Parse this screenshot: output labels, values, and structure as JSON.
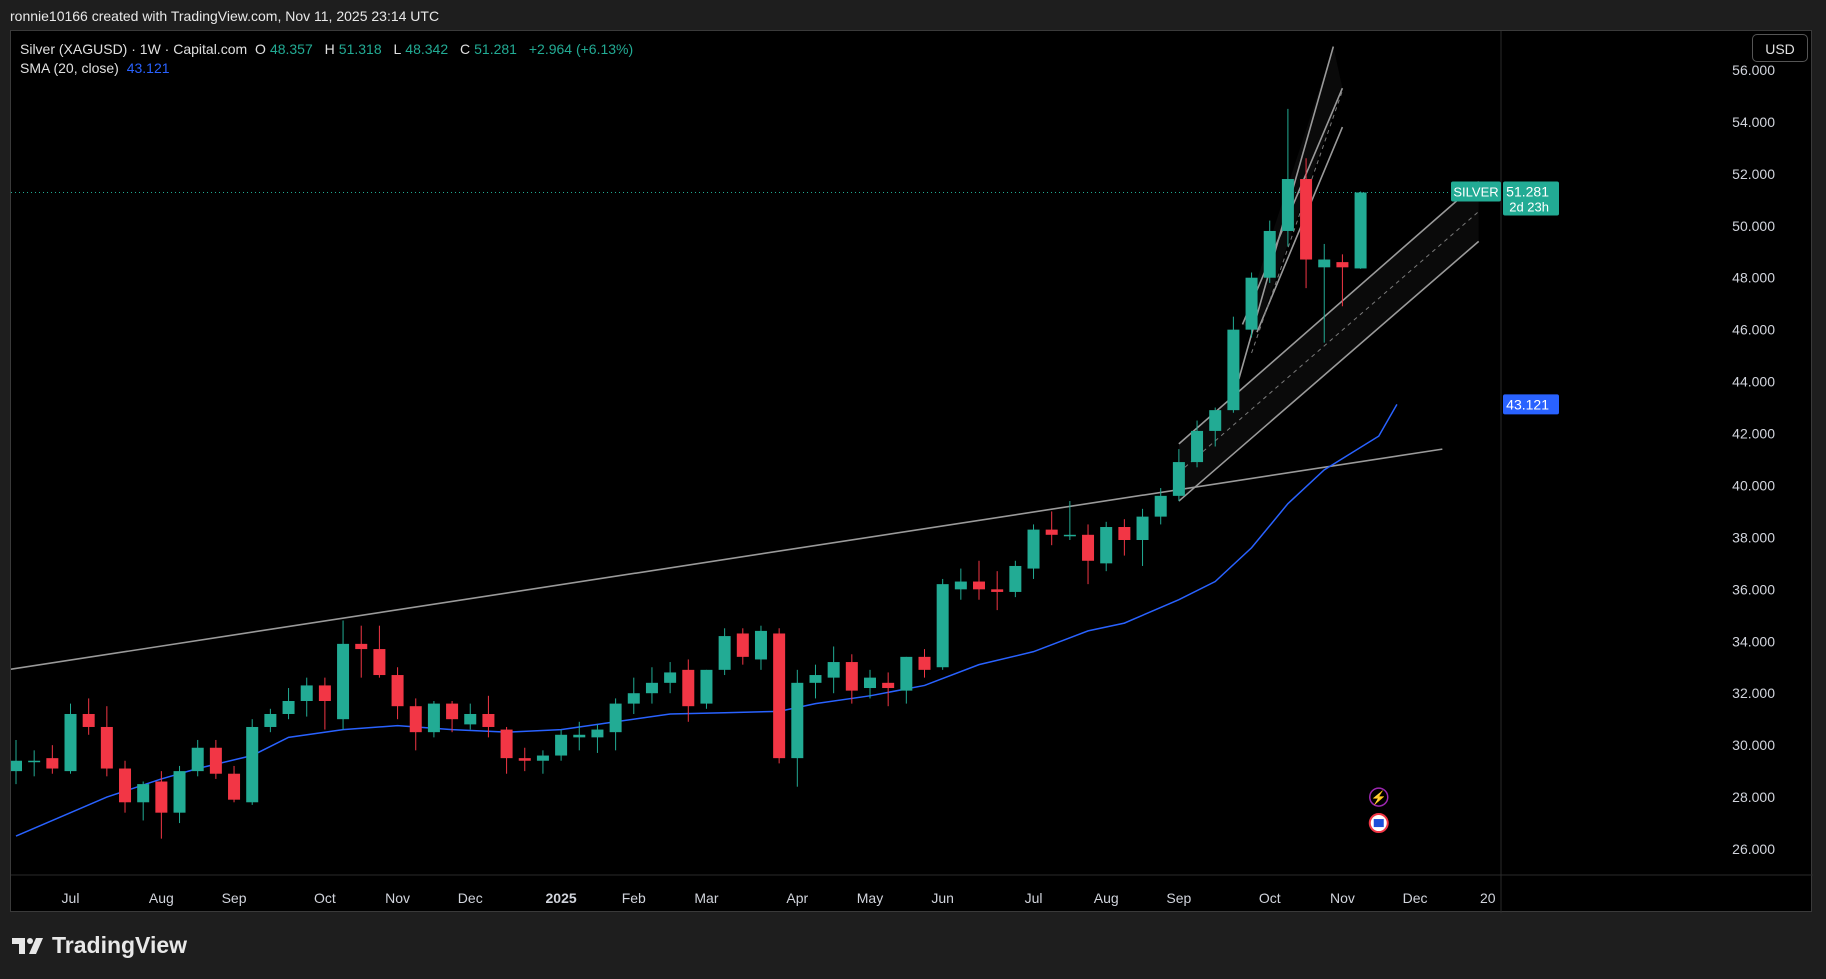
{
  "header": {
    "attribution": "ronnie10166 created with TradingView.com, Nov 11, 2025 23:14 UTC"
  },
  "legend": {
    "symbol": "Silver (XAGUSD) · 1W · Capital.com",
    "o_label": "O",
    "o_value": "48.357",
    "h_label": "H",
    "h_value": "51.318",
    "l_label": "L",
    "l_value": "48.342",
    "c_label": "C",
    "c_value": "51.281",
    "change": "+2.964 (+6.13%)",
    "sma_label": "SMA (20, close)",
    "sma_value": "43.121"
  },
  "currency_button": "USD",
  "price_tag": {
    "name": "SILVER",
    "price": "51.281",
    "countdown": "2d 23h"
  },
  "sma_tag": "43.121",
  "brand": "TradingView",
  "colors": {
    "up": "#22ab94",
    "down": "#f23645",
    "sma": "#2962ff",
    "line": "#9a9a9a",
    "text": "#d1d4dc"
  },
  "chart_data": {
    "type": "candlestick",
    "title": "Silver (XAGUSD) · 1W · Capital.com",
    "ylim": [
      25,
      57.5
    ],
    "y_ticks": [
      "26.000",
      "28.000",
      "30.000",
      "32.000",
      "34.000",
      "36.000",
      "38.000",
      "40.000",
      "42.000",
      "44.000",
      "46.000",
      "48.000",
      "50.000",
      "52.000",
      "54.000",
      "56.000"
    ],
    "x_ticks": [
      {
        "label": "Jul",
        "week": 3
      },
      {
        "label": "Aug",
        "week": 8
      },
      {
        "label": "Sep",
        "week": 12
      },
      {
        "label": "Oct",
        "week": 17
      },
      {
        "label": "Nov",
        "week": 21
      },
      {
        "label": "Dec",
        "week": 25
      },
      {
        "label": "2025",
        "week": 30
      },
      {
        "label": "Feb",
        "week": 34
      },
      {
        "label": "Mar",
        "week": 38
      },
      {
        "label": "Apr",
        "week": 43
      },
      {
        "label": "May",
        "week": 47
      },
      {
        "label": "Jun",
        "week": 51
      },
      {
        "label": "Jul",
        "week": 56
      },
      {
        "label": "Aug",
        "week": 60
      },
      {
        "label": "Sep",
        "week": 64
      },
      {
        "label": "Oct",
        "week": 69
      },
      {
        "label": "Nov",
        "week": 73
      },
      {
        "label": "Dec",
        "week": 77
      },
      {
        "label": "20",
        "week": 81
      }
    ],
    "ohlc": [
      [
        29.0,
        30.2,
        28.5,
        29.4
      ],
      [
        29.4,
        29.8,
        28.8,
        29.4
      ],
      [
        29.5,
        30.0,
        28.9,
        29.1
      ],
      [
        29.0,
        31.6,
        28.9,
        31.2
      ],
      [
        31.2,
        31.8,
        30.4,
        30.7
      ],
      [
        30.7,
        31.5,
        28.8,
        29.1
      ],
      [
        29.1,
        29.4,
        27.4,
        27.8
      ],
      [
        27.8,
        28.6,
        27.1,
        28.5
      ],
      [
        28.6,
        29.0,
        26.4,
        27.4
      ],
      [
        27.4,
        29.2,
        27.0,
        29.0
      ],
      [
        29.0,
        30.2,
        28.8,
        29.9
      ],
      [
        29.9,
        30.2,
        28.7,
        28.9
      ],
      [
        28.9,
        29.2,
        27.8,
        27.9
      ],
      [
        27.8,
        31.0,
        27.7,
        30.7
      ],
      [
        30.7,
        31.4,
        30.5,
        31.2
      ],
      [
        31.2,
        32.2,
        31.0,
        31.7
      ],
      [
        31.7,
        32.6,
        31.1,
        32.3
      ],
      [
        32.3,
        32.6,
        30.6,
        31.7
      ],
      [
        31.0,
        34.8,
        30.6,
        33.9
      ],
      [
        33.9,
        34.6,
        32.6,
        33.7
      ],
      [
        33.7,
        34.6,
        32.6,
        32.7
      ],
      [
        32.7,
        33.0,
        31.0,
        31.5
      ],
      [
        31.5,
        31.8,
        29.8,
        30.5
      ],
      [
        30.5,
        31.7,
        30.3,
        31.6
      ],
      [
        31.6,
        31.7,
        30.5,
        31.0
      ],
      [
        30.8,
        31.6,
        30.6,
        31.2
      ],
      [
        31.2,
        31.9,
        30.3,
        30.7
      ],
      [
        30.6,
        30.7,
        28.9,
        29.5
      ],
      [
        29.5,
        29.9,
        29.0,
        29.4
      ],
      [
        29.4,
        29.8,
        28.9,
        29.6
      ],
      [
        29.6,
        30.6,
        29.4,
        30.4
      ],
      [
        30.3,
        30.9,
        29.8,
        30.4
      ],
      [
        30.3,
        30.8,
        29.7,
        30.6
      ],
      [
        30.5,
        31.8,
        29.8,
        31.6
      ],
      [
        31.6,
        32.6,
        31.2,
        32.0
      ],
      [
        32.0,
        33.0,
        31.6,
        32.4
      ],
      [
        32.4,
        33.2,
        32.0,
        32.8
      ],
      [
        32.9,
        33.3,
        30.9,
        31.5
      ],
      [
        31.6,
        32.9,
        31.4,
        32.9
      ],
      [
        32.9,
        34.5,
        32.7,
        34.2
      ],
      [
        34.3,
        34.5,
        33.1,
        33.4
      ],
      [
        33.3,
        34.6,
        32.9,
        34.4
      ],
      [
        34.3,
        34.5,
        29.3,
        29.5
      ],
      [
        29.5,
        32.9,
        28.4,
        32.4
      ],
      [
        32.4,
        33.1,
        31.8,
        32.7
      ],
      [
        32.6,
        33.8,
        32.0,
        33.2
      ],
      [
        33.2,
        33.5,
        31.6,
        32.1
      ],
      [
        32.2,
        32.9,
        31.8,
        32.6
      ],
      [
        32.4,
        32.8,
        31.5,
        32.2
      ],
      [
        32.1,
        33.4,
        31.6,
        33.4
      ],
      [
        33.4,
        33.7,
        32.6,
        32.9
      ],
      [
        33.0,
        36.4,
        32.9,
        36.2
      ],
      [
        36.0,
        36.8,
        35.6,
        36.3
      ],
      [
        36.3,
        37.1,
        35.6,
        36.0
      ],
      [
        36.0,
        36.7,
        35.2,
        35.9
      ],
      [
        35.9,
        37.1,
        35.7,
        36.9
      ],
      [
        36.8,
        38.5,
        36.4,
        38.3
      ],
      [
        38.3,
        39.0,
        37.7,
        38.1
      ],
      [
        38.1,
        39.4,
        37.9,
        38.1
      ],
      [
        38.1,
        38.5,
        36.2,
        37.1
      ],
      [
        37.0,
        38.6,
        36.7,
        38.4
      ],
      [
        38.4,
        38.7,
        37.3,
        37.9
      ],
      [
        37.9,
        39.1,
        36.9,
        38.8
      ],
      [
        38.8,
        39.9,
        38.5,
        39.6
      ],
      [
        39.6,
        41.4,
        39.4,
        40.9
      ],
      [
        40.9,
        42.5,
        40.7,
        42.1
      ],
      [
        42.1,
        43.0,
        41.5,
        42.9
      ],
      [
        42.9,
        46.5,
        42.8,
        46.0
      ],
      [
        46.0,
        48.2,
        45.7,
        48.0
      ],
      [
        48.0,
        50.2,
        47.8,
        49.8
      ],
      [
        49.8,
        54.5,
        49.2,
        51.8
      ],
      [
        51.8,
        52.6,
        47.6,
        48.7
      ],
      [
        48.4,
        49.3,
        45.5,
        48.7
      ],
      [
        48.6,
        48.9,
        46.9,
        48.4
      ],
      [
        48.357,
        51.318,
        48.342,
        51.281
      ]
    ],
    "sma": [
      [
        0,
        26.5
      ],
      [
        3,
        27.4
      ],
      [
        5,
        28.0
      ],
      [
        8,
        28.7
      ],
      [
        10,
        29.1
      ],
      [
        13,
        29.6
      ],
      [
        15,
        30.3
      ],
      [
        18,
        30.6
      ],
      [
        21,
        30.75
      ],
      [
        24,
        30.6
      ],
      [
        27,
        30.5
      ],
      [
        30,
        30.6
      ],
      [
        33,
        30.9
      ],
      [
        36,
        31.2
      ],
      [
        39,
        31.25
      ],
      [
        42,
        31.3
      ],
      [
        44,
        31.6
      ],
      [
        47,
        31.9
      ],
      [
        50,
        32.3
      ],
      [
        53,
        33.1
      ],
      [
        56,
        33.6
      ],
      [
        59,
        34.4
      ],
      [
        61,
        34.7
      ],
      [
        64,
        35.6
      ],
      [
        66,
        36.3
      ],
      [
        68,
        37.6
      ],
      [
        70,
        39.3
      ],
      [
        72,
        40.6
      ],
      [
        75,
        41.9
      ],
      [
        76,
        43.121
      ]
    ],
    "trendlines": [
      {
        "from": [
          -0.5,
          32.9
        ],
        "to": [
          78.5,
          41.4
        ]
      },
      {
        "from": [
          64,
          41.6
        ],
        "to": [
          80.5,
          51.7
        ]
      },
      {
        "from": [
          64,
          39.4
        ],
        "to": [
          80.5,
          49.4
        ]
      },
      {
        "from": [
          67.5,
          46.2
        ],
        "to": [
          73,
          55.3
        ]
      },
      {
        "from": [
          67.3,
          44.1
        ],
        "to": [
          72.5,
          56.9
        ]
      },
      {
        "from": [
          68.3,
          45.9
        ],
        "to": [
          73,
          53.8
        ]
      }
    ]
  }
}
